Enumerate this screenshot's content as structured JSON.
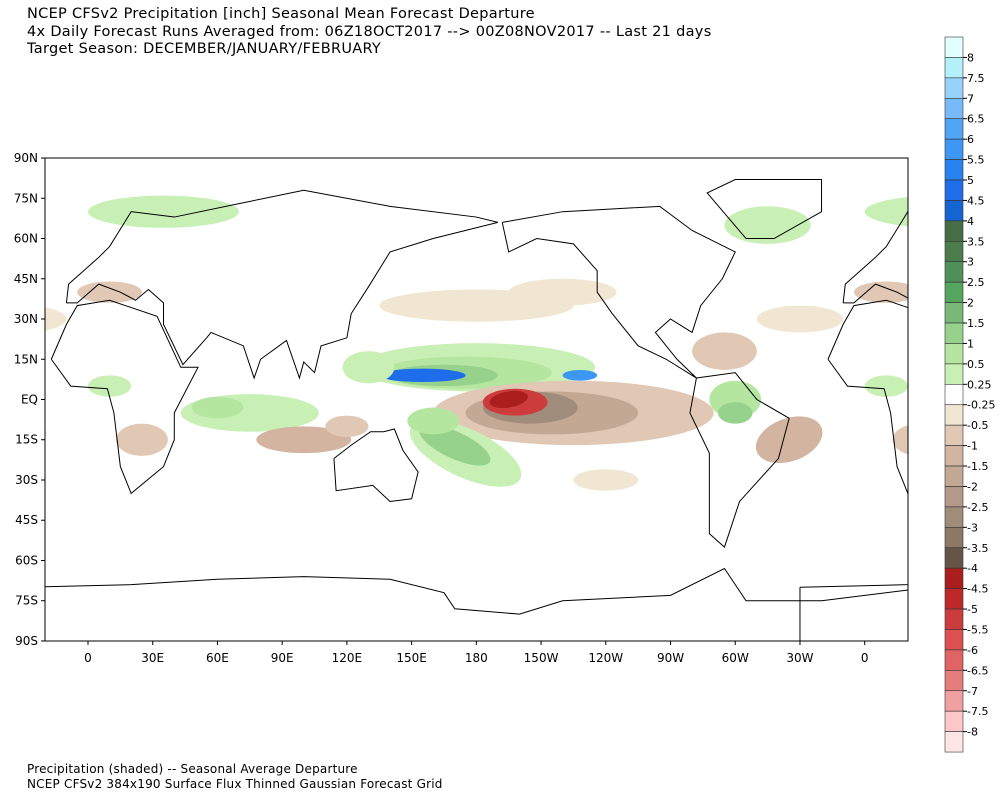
{
  "header": {
    "title_line1": "NCEP CFSv2 Precipitation [inch] Seasonal Mean Forecast Departure",
    "title_line2": "4x Daily Forecast Runs Averaged from: 06Z18OCT2017 --> 00Z08NOV2017 -- Last 21 days",
    "title_line3": "Target Season: DECEMBER/JANUARY/FEBRUARY"
  },
  "footer": {
    "line1": "Precipitation (shaded) -- Seasonal Average Departure",
    "line2": "NCEP CFSv2 384x190 Surface Flux Thinned Gaussian Forecast Grid"
  },
  "map": {
    "lat_labels": [
      "90N",
      "75N",
      "60N",
      "45N",
      "30N",
      "15N",
      "EQ",
      "15S",
      "30S",
      "45S",
      "60S",
      "75S",
      "90S"
    ],
    "lon_labels": [
      "0",
      "30E",
      "60E",
      "90E",
      "120E",
      "150E",
      "180",
      "150W",
      "120W",
      "90W",
      "60W",
      "30W",
      "0"
    ]
  },
  "colorbar": {
    "labels": [
      "8",
      "7.5",
      "7",
      "6.5",
      "6",
      "5.5",
      "5",
      "4.5",
      "4",
      "3.5",
      "3",
      "2.5",
      "2",
      "1.5",
      "1",
      "0.5",
      "0.25",
      "-0.25",
      "-0.5",
      "-1",
      "-1.5",
      "-2",
      "-2.5",
      "-3",
      "-3.5",
      "-4",
      "-4.5",
      "-5",
      "-5.5",
      "-6",
      "-6.5",
      "-7",
      "-7.5",
      "-8"
    ],
    "colors": [
      "#e1ffff",
      "#b4f0fa",
      "#96d2fa",
      "#78b9fa",
      "#50a5f5",
      "#3c97f5",
      "#2883f0",
      "#1e6eeb",
      "#1464d2",
      "#466e46",
      "#4b7d4b",
      "#50915a",
      "#55a55f",
      "#78b978",
      "#96d28c",
      "#b4e6a0",
      "#c8f0b4",
      "#ffffff",
      "#f0e6d2",
      "#e1c8b4",
      "#d2b4a0",
      "#c3a894",
      "#b4988a",
      "#a08c7a",
      "#8c7866",
      "#645546",
      "#aa1e1e",
      "#be2828",
      "#cd3c3c",
      "#dc5050",
      "#e16464",
      "#e67d7d",
      "#f0a0a0",
      "#ffc8c8",
      "#ffe6e6"
    ]
  }
}
